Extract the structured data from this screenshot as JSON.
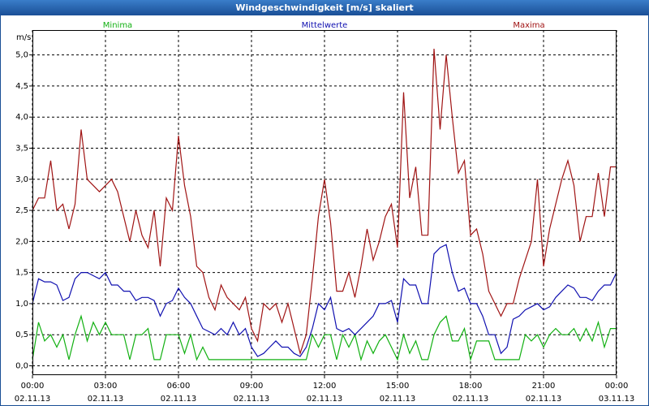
{
  "chart_data": {
    "type": "line",
    "title": "Windgeschwindigkeit [m/s] skaliert",
    "y_label": "m/s",
    "x": [
      0,
      0.25,
      0.5,
      0.75,
      1,
      1.25,
      1.5,
      1.75,
      2,
      2.25,
      2.5,
      2.75,
      3,
      3.25,
      3.5,
      3.75,
      4,
      4.25,
      4.5,
      4.75,
      5,
      5.25,
      5.5,
      5.75,
      6,
      6.25,
      6.5,
      6.75,
      7,
      7.25,
      7.5,
      7.75,
      8,
      8.25,
      8.5,
      8.75,
      9,
      9.25,
      9.5,
      9.75,
      10,
      10.25,
      10.5,
      10.75,
      11,
      11.25,
      11.5,
      11.75,
      12,
      12.25,
      12.5,
      12.75,
      13,
      13.25,
      13.5,
      13.75,
      14,
      14.25,
      14.5,
      14.75,
      15,
      15.25,
      15.5,
      15.75,
      16,
      16.25,
      16.5,
      16.75,
      17,
      17.25,
      17.5,
      17.75,
      18,
      18.25,
      18.5,
      18.75,
      19,
      19.25,
      19.5,
      19.75,
      20,
      20.25,
      20.5,
      20.75,
      21,
      21.25,
      21.5,
      21.75,
      22,
      22.25,
      22.5,
      22.75,
      23,
      23.25,
      23.5,
      23.75,
      24
    ],
    "series": [
      {
        "name": "Minima",
        "color": "#12b012",
        "values": [
          0.1,
          0.7,
          0.4,
          0.5,
          0.3,
          0.5,
          0.1,
          0.5,
          0.8,
          0.4,
          0.7,
          0.5,
          0.7,
          0.5,
          0.5,
          0.5,
          0.1,
          0.5,
          0.5,
          0.6,
          0.1,
          0.1,
          0.5,
          0.5,
          0.5,
          0.2,
          0.5,
          0.1,
          0.3,
          0.1,
          0.1,
          0.1,
          0.1,
          0.1,
          0.1,
          0.1,
          0.1,
          0.1,
          0.1,
          0.1,
          0.1,
          0.1,
          0.1,
          0.1,
          0.1,
          0.1,
          0.5,
          0.3,
          0.5,
          0.5,
          0.1,
          0.5,
          0.3,
          0.5,
          0.1,
          0.4,
          0.2,
          0.4,
          0.5,
          0.3,
          0.1,
          0.5,
          0.2,
          0.4,
          0.1,
          0.1,
          0.5,
          0.7,
          0.8,
          0.4,
          0.4,
          0.6,
          0.1,
          0.4,
          0.4,
          0.4,
          0.1,
          0.1,
          0.1,
          0.1,
          0.1,
          0.5,
          0.4,
          0.5,
          0.3,
          0.5,
          0.6,
          0.5,
          0.5,
          0.6,
          0.4,
          0.6,
          0.4,
          0.7,
          0.3,
          0.6,
          0.6
        ]
      },
      {
        "name": "Mittelwerte",
        "color": "#1010b0",
        "values": [
          1.0,
          1.4,
          1.35,
          1.35,
          1.3,
          1.05,
          1.1,
          1.4,
          1.5,
          1.5,
          1.45,
          1.4,
          1.5,
          1.3,
          1.3,
          1.2,
          1.2,
          1.05,
          1.1,
          1.1,
          1.05,
          0.8,
          1.0,
          1.05,
          1.25,
          1.1,
          1.0,
          0.8,
          0.6,
          0.55,
          0.5,
          0.6,
          0.5,
          0.7,
          0.5,
          0.6,
          0.3,
          0.15,
          0.2,
          0.3,
          0.4,
          0.3,
          0.3,
          0.2,
          0.15,
          0.3,
          0.6,
          1.0,
          0.9,
          1.1,
          0.6,
          0.55,
          0.6,
          0.5,
          0.6,
          0.7,
          0.8,
          1.0,
          1.0,
          1.05,
          0.7,
          1.4,
          1.3,
          1.3,
          1.0,
          1.0,
          1.8,
          1.9,
          1.95,
          1.5,
          1.2,
          1.25,
          1.0,
          1.0,
          0.8,
          0.5,
          0.5,
          0.2,
          0.3,
          0.75,
          0.8,
          0.9,
          0.95,
          1.0,
          0.9,
          0.95,
          1.1,
          1.2,
          1.3,
          1.25,
          1.1,
          1.1,
          1.05,
          1.2,
          1.3,
          1.3,
          1.5
        ]
      },
      {
        "name": "Maxima",
        "color": "#a01414",
        "values": [
          2.5,
          2.7,
          2.7,
          3.3,
          2.5,
          2.6,
          2.2,
          2.6,
          3.8,
          3.0,
          2.9,
          2.8,
          2.9,
          3.0,
          2.8,
          2.4,
          2.0,
          2.5,
          2.1,
          1.9,
          2.5,
          1.6,
          2.7,
          2.5,
          3.7,
          2.9,
          2.4,
          1.6,
          1.5,
          1.1,
          0.9,
          1.3,
          1.1,
          1.0,
          0.9,
          1.1,
          0.6,
          0.4,
          1.0,
          0.9,
          1.0,
          0.7,
          1.0,
          0.6,
          0.2,
          0.5,
          1.4,
          2.4,
          3.0,
          2.3,
          1.2,
          1.2,
          1.5,
          1.1,
          1.6,
          2.2,
          1.7,
          2.0,
          2.4,
          2.6,
          1.9,
          4.4,
          2.7,
          3.2,
          2.1,
          2.1,
          5.1,
          3.8,
          5.0,
          4.0,
          3.1,
          3.3,
          2.1,
          2.2,
          1.8,
          1.2,
          1.0,
          0.8,
          1.0,
          1.0,
          1.4,
          1.7,
          2.0,
          3.0,
          1.6,
          2.2,
          2.6,
          3.0,
          3.3,
          2.9,
          2.0,
          2.4,
          2.4,
          3.1,
          2.4,
          3.2,
          3.2
        ]
      }
    ],
    "xlim": [
      0,
      24
    ],
    "xticks": [
      {
        "value": 0,
        "label": "00:00",
        "date": "02.11.13"
      },
      {
        "value": 3,
        "label": "03:00",
        "date": "02.11.13"
      },
      {
        "value": 6,
        "label": "06:00",
        "date": "02.11.13"
      },
      {
        "value": 9,
        "label": "09:00",
        "date": "02.11.13"
      },
      {
        "value": 12,
        "label": "12:00",
        "date": "02.11.13"
      },
      {
        "value": 15,
        "label": "15:00",
        "date": "02.11.13"
      },
      {
        "value": 18,
        "label": "18:00",
        "date": "02.11.13"
      },
      {
        "value": 21,
        "label": "21:00",
        "date": "02.11.13"
      },
      {
        "value": 24,
        "label": "00:00",
        "date": "03.11.13"
      }
    ],
    "ylim": [
      -0.15,
      5.4
    ],
    "yticks": [
      {
        "value": 0,
        "label": "0,0"
      },
      {
        "value": 0.5,
        "label": "0,5"
      },
      {
        "value": 1,
        "label": "1,0"
      },
      {
        "value": 1.5,
        "label": "1,5"
      },
      {
        "value": 2,
        "label": "2,0"
      },
      {
        "value": 2.5,
        "label": "2,5"
      },
      {
        "value": 3,
        "label": "3,0"
      },
      {
        "value": 3.5,
        "label": "3,5"
      },
      {
        "value": 4,
        "label": "4,0"
      },
      {
        "value": 4.5,
        "label": "4,5"
      },
      {
        "value": 5,
        "label": "5,0"
      }
    ],
    "grid": true
  }
}
